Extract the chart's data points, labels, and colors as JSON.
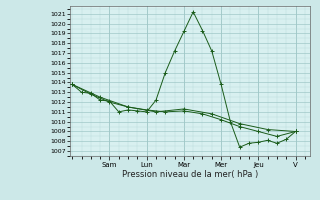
{
  "xlabel": "Pression niveau de la mer( hPa )",
  "bg_color": "#cce8e8",
  "plot_bg_color": "#d8f0f0",
  "line_color": "#1a5c1a",
  "grid_color": "#a0c8c8",
  "grid_minor_color": "#b8d8d8",
  "ylim": [
    1006.5,
    1021.8
  ],
  "yticks": [
    1007,
    1008,
    1009,
    1010,
    1011,
    1012,
    1013,
    1014,
    1015,
    1016,
    1017,
    1018,
    1019,
    1020,
    1021
  ],
  "day_labels": [
    "Sam",
    "Lun",
    "Mar",
    "Mer",
    "Jeu",
    "V"
  ],
  "day_positions": [
    2,
    4,
    6,
    8,
    10,
    12
  ],
  "xlim": [
    -0.1,
    12.8
  ],
  "series": {
    "line1": {
      "x": [
        0,
        0.5,
        1,
        1.5,
        2,
        2.5,
        3,
        3.5,
        4,
        4.5,
        5,
        5.5,
        6,
        6.5,
        7,
        7.5,
        8,
        8.5,
        9,
        9.5,
        10,
        10.5,
        11,
        11.5,
        12
      ],
      "y": [
        1013.8,
        1013.0,
        1012.9,
        1012.2,
        1012.1,
        1011.0,
        1011.2,
        1011.1,
        1011.0,
        1012.2,
        1015.0,
        1017.2,
        1019.2,
        1021.2,
        1019.3,
        1017.2,
        1013.8,
        1010.0,
        1007.4,
        1007.8,
        1007.9,
        1008.1,
        1007.8,
        1008.2,
        1009.0
      ]
    },
    "line2": {
      "x": [
        0,
        1,
        2,
        3,
        4,
        5,
        6,
        7,
        8,
        9,
        10,
        11,
        12
      ],
      "y": [
        1013.8,
        1012.8,
        1012.0,
        1011.5,
        1011.2,
        1011.0,
        1011.1,
        1010.8,
        1010.2,
        1009.5,
        1009.0,
        1008.5,
        1009.0
      ]
    },
    "line3": {
      "x": [
        0,
        1.5,
        3,
        4.5,
        6,
        7.5,
        9,
        10.5,
        12
      ],
      "y": [
        1013.8,
        1012.5,
        1011.5,
        1011.0,
        1011.3,
        1010.8,
        1009.8,
        1009.2,
        1009.0
      ]
    }
  }
}
